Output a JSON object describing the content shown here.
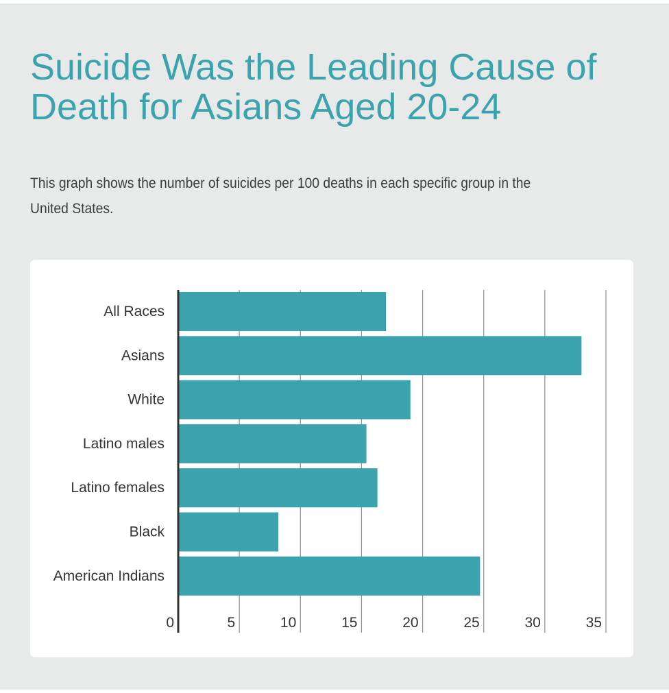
{
  "header": {
    "title": "Suicide Was the Leading Cause of Death for Asians Aged 20-24",
    "subtitle": "This graph shows the number of suicides per 100 deaths in each specific group in the United States."
  },
  "colors": {
    "page_background": "#e8e9e9",
    "bar": "#3aa3ad",
    "title": "#3aa3ad",
    "text": "#333333"
  },
  "chart_data": {
    "type": "bar",
    "orientation": "horizontal",
    "title": "",
    "xlabel": "",
    "ylabel": "",
    "categories": [
      "All Races",
      "Asians",
      "White",
      "Latino males",
      "Latino females",
      "Black",
      "American Indians"
    ],
    "values": [
      17,
      33,
      19,
      15.4,
      16.3,
      8.2,
      24.7
    ],
    "xlim": [
      0,
      35
    ],
    "xticks": [
      0,
      5,
      10,
      15,
      20,
      25,
      30,
      35
    ],
    "grid": true,
    "legend": "none"
  }
}
